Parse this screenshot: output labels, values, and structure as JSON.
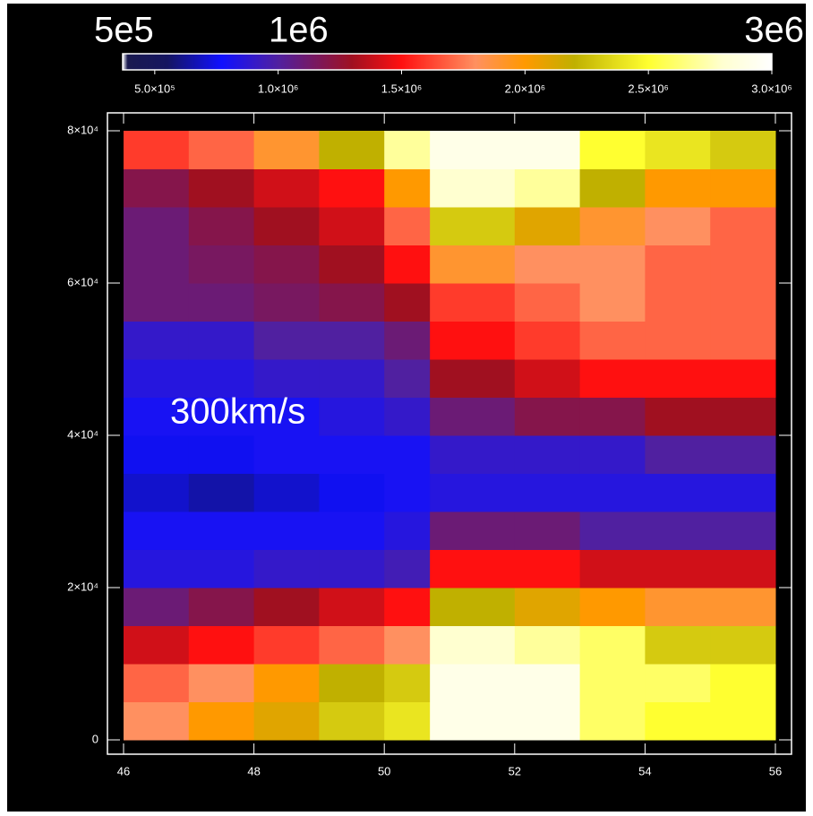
{
  "chart_data": {
    "type": "heatmap",
    "annotations": [
      "5e5",
      "1e6",
      "3e6",
      "300km/s"
    ],
    "x_edges": [
      46,
      47,
      48,
      49,
      50,
      50.7,
      52,
      53,
      54,
      55,
      56
    ],
    "y_edges": [
      0,
      5000,
      10000,
      15000,
      20000,
      25000,
      30000,
      35000,
      40000,
      45000,
      50000,
      55000,
      60000,
      65000,
      70000,
      75000,
      80000
    ],
    "z": [
      [
        1800000,
        2000000,
        2100000,
        2300000,
        2400000,
        2900000,
        2900000,
        2600000,
        2500000,
        2500000
      ],
      [
        1700000,
        1800000,
        2000000,
        2200000,
        2300000,
        2900000,
        2900000,
        2600000,
        2600000,
        2500000
      ],
      [
        1400000,
        1500000,
        1600000,
        1700000,
        1800000,
        2800000,
        2700000,
        2600000,
        2300000,
        2300000
      ],
      [
        1100000,
        1200000,
        1300000,
        1400000,
        1500000,
        2200000,
        2100000,
        2000000,
        1900000,
        1900000
      ],
      [
        850000,
        850000,
        900000,
        900000,
        950000,
        1500000,
        1500000,
        1400000,
        1400000,
        1400000
      ],
      [
        800000,
        800000,
        800000,
        800000,
        850000,
        1100000,
        1100000,
        1000000,
        1000000,
        1000000
      ],
      [
        700000,
        650000,
        700000,
        750000,
        800000,
        850000,
        850000,
        850000,
        850000,
        850000
      ],
      [
        750000,
        750000,
        800000,
        800000,
        800000,
        900000,
        900000,
        900000,
        1000000,
        1000000
      ],
      [
        800000,
        800000,
        800000,
        850000,
        900000,
        1100000,
        1200000,
        1200000,
        1300000,
        1300000
      ],
      [
        850000,
        850000,
        900000,
        900000,
        1000000,
        1300000,
        1400000,
        1500000,
        1500000,
        1500000
      ],
      [
        900000,
        900000,
        1000000,
        1000000,
        1100000,
        1500000,
        1600000,
        1700000,
        1700000,
        1700000
      ],
      [
        1100000,
        1100000,
        1150000,
        1200000,
        1300000,
        1600000,
        1700000,
        1800000,
        1700000,
        1700000
      ],
      [
        1100000,
        1150000,
        1200000,
        1300000,
        1500000,
        1900000,
        1800000,
        1800000,
        1700000,
        1700000
      ],
      [
        1100000,
        1200000,
        1300000,
        1400000,
        1700000,
        2300000,
        2100000,
        1900000,
        1800000,
        1700000
      ],
      [
        1200000,
        1300000,
        1400000,
        1500000,
        2000000,
        2800000,
        2700000,
        2200000,
        2000000,
        2000000
      ],
      [
        1600000,
        1700000,
        1900000,
        2200000,
        2700000,
        2900000,
        2900000,
        2500000,
        2400000,
        2300000
      ]
    ],
    "xlim": [
      46,
      56
    ],
    "ylim": [
      0,
      80000
    ],
    "xticks": [
      46,
      48,
      50,
      52,
      54,
      56
    ],
    "yticks": [
      0,
      {
        "value": 20000,
        "label": "2×10⁴"
      },
      {
        "value": 40000,
        "label": "4×10⁴"
      },
      {
        "value": 60000,
        "label": "6×10⁴"
      },
      {
        "value": 80000,
        "label": "8×10⁴"
      }
    ],
    "colorbar": {
      "lim": [
        370000,
        3000000
      ],
      "ticks": [
        {
          "value": 500000,
          "label": "5.0×10⁵"
        },
        {
          "value": 1000000,
          "label": "1.0×10⁶"
        },
        {
          "value": 1500000,
          "label": "1.5×10⁶"
        },
        {
          "value": 2000000,
          "label": "2.0×10⁶"
        },
        {
          "value": 2500000,
          "label": "2.5×10⁶"
        },
        {
          "value": 3000000,
          "label": "3.0×10⁶"
        }
      ]
    },
    "colormap": [
      {
        "value": 370000,
        "color": "#ffffff"
      },
      {
        "value": 390000,
        "color": "#1a1a50"
      },
      {
        "value": 550000,
        "color": "#151560"
      },
      {
        "value": 770000,
        "color": "#1010ff"
      },
      {
        "value": 1000000,
        "color": "#5020a0"
      },
      {
        "value": 1300000,
        "color": "#a01020"
      },
      {
        "value": 1500000,
        "color": "#ff1010"
      },
      {
        "value": 1800000,
        "color": "#ff9060"
      },
      {
        "value": 2000000,
        "color": "#ff9900"
      },
      {
        "value": 2200000,
        "color": "#c0b000"
      },
      {
        "value": 2500000,
        "color": "#ffff30"
      },
      {
        "value": 2800000,
        "color": "#ffffd0"
      },
      {
        "value": 3000000,
        "color": "#ffffff"
      }
    ]
  }
}
